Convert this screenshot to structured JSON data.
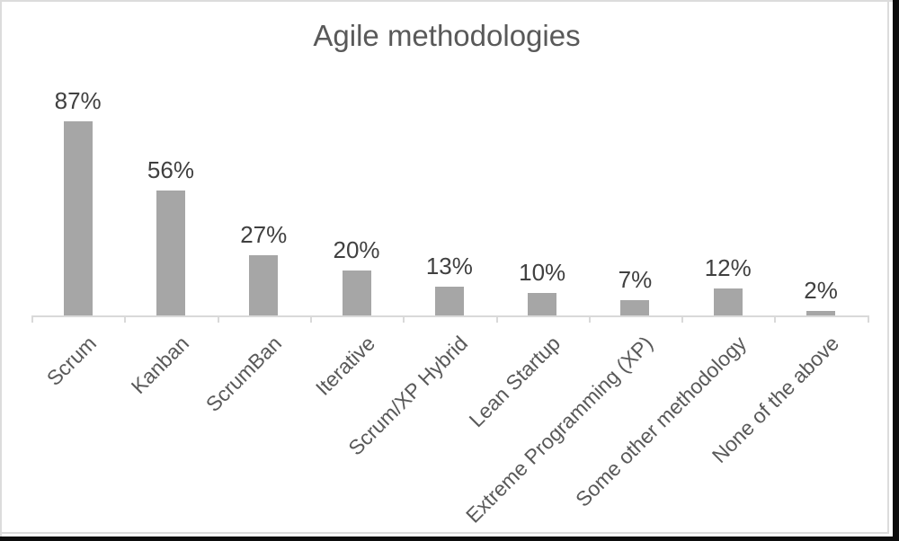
{
  "chart_data": {
    "type": "bar",
    "title": "Agile methodologies",
    "categories": [
      "Scrum",
      "Kanban",
      "ScrumBan",
      "Iterative",
      "Scrum/XP Hybrid",
      "Lean Startup",
      "Extreme Programming (XP)",
      "Some other methodology",
      "None of the above"
    ],
    "values": [
      87,
      56,
      27,
      20,
      13,
      10,
      7,
      12,
      2
    ],
    "data_labels": [
      "87%",
      "56%",
      "27%",
      "20%",
      "13%",
      "10%",
      "7%",
      "12%",
      "2%"
    ],
    "unit": "%",
    "ylim": [
      0,
      100
    ],
    "grid": false,
    "legend": "none",
    "x_label_rotation_deg": -45,
    "colors": {
      "bar": "#a6a6a6",
      "axis_line": "#d9d9d9",
      "tick": "#d9d9d9",
      "title": "#595959",
      "data_label": "#404040",
      "category_label": "#595959",
      "frame_edge_dark": "#0d0d0d",
      "frame_edge_light": "#dcdcdc",
      "background": "#ffffff"
    }
  }
}
